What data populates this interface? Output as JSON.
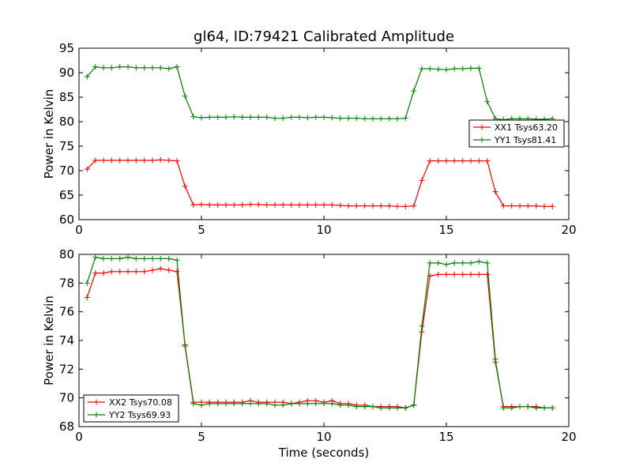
{
  "figure": {
    "title": "gl64, ID:79421 Calibrated Amplitude",
    "xlabel": "Time (seconds)",
    "ylabel": "Power in Kelvin"
  },
  "chart_data": [
    {
      "type": "line",
      "ylabel": "Power in Kelvin",
      "xlim": [
        0,
        20
      ],
      "ylim": [
        60,
        95
      ],
      "xticks": [
        "0",
        "5",
        "10",
        "15",
        "20"
      ],
      "yticks": [
        "60",
        "65",
        "70",
        "75",
        "80",
        "85",
        "90",
        "95"
      ],
      "grid": false,
      "legend_position": "center-right",
      "series": [
        {
          "name": "XX1 Tsys63.20",
          "color": "#ff0000",
          "x": [
            0.33,
            0.67,
            1.0,
            1.33,
            1.67,
            2.0,
            2.33,
            2.67,
            3.0,
            3.33,
            3.67,
            4.0,
            4.33,
            4.67,
            5.0,
            5.33,
            5.67,
            6.0,
            6.33,
            6.67,
            7.0,
            7.33,
            7.67,
            8.0,
            8.33,
            8.67,
            9.0,
            9.33,
            9.67,
            10.0,
            10.33,
            10.67,
            11.0,
            11.33,
            11.67,
            12.0,
            12.33,
            12.67,
            13.0,
            13.33,
            13.67,
            14.0,
            14.33,
            14.67,
            15.0,
            15.33,
            15.67,
            16.0,
            16.33,
            16.67,
            17.0,
            17.33,
            17.67,
            18.0,
            18.33,
            18.67,
            19.0,
            19.33
          ],
          "y": [
            70.3,
            72.1,
            72.1,
            72.1,
            72.1,
            72.1,
            72.1,
            72.1,
            72.1,
            72.2,
            72.1,
            72.0,
            66.8,
            63.0,
            63.1,
            63.0,
            63.0,
            63.0,
            63.0,
            63.0,
            63.1,
            63.1,
            63.0,
            63.0,
            63.0,
            63.0,
            63.0,
            63.0,
            63.0,
            63.0,
            63.0,
            62.9,
            62.8,
            62.8,
            62.8,
            62.8,
            62.8,
            62.8,
            62.7,
            62.7,
            62.8,
            68.0,
            72.0,
            72.0,
            72.0,
            72.0,
            72.0,
            72.0,
            72.0,
            72.0,
            65.7,
            62.8,
            62.8,
            62.8,
            62.8,
            62.8,
            62.7,
            62.7
          ]
        },
        {
          "name": "YY1 Tsys81.41",
          "color": "#008000",
          "x": [
            0.33,
            0.67,
            1.0,
            1.33,
            1.67,
            2.0,
            2.33,
            2.67,
            3.0,
            3.33,
            3.67,
            4.0,
            4.33,
            4.67,
            5.0,
            5.33,
            5.67,
            6.0,
            6.33,
            6.67,
            7.0,
            7.33,
            7.67,
            8.0,
            8.33,
            8.67,
            9.0,
            9.33,
            9.67,
            10.0,
            10.33,
            10.67,
            11.0,
            11.33,
            11.67,
            12.0,
            12.33,
            12.67,
            13.0,
            13.33,
            13.67,
            14.0,
            14.33,
            14.67,
            15.0,
            15.33,
            15.67,
            16.0,
            16.33,
            16.67,
            17.0,
            17.33,
            17.67,
            18.0,
            18.33,
            18.67,
            19.0,
            19.33
          ],
          "y": [
            89.2,
            91.2,
            91.0,
            91.0,
            91.2,
            91.2,
            91.0,
            91.0,
            91.0,
            91.0,
            90.8,
            91.2,
            85.2,
            81.0,
            80.8,
            80.9,
            80.9,
            80.9,
            81.0,
            80.9,
            80.9,
            80.9,
            80.9,
            80.7,
            80.7,
            80.9,
            80.9,
            80.8,
            80.9,
            80.9,
            80.8,
            80.7,
            80.7,
            80.7,
            80.6,
            80.6,
            80.6,
            80.6,
            80.6,
            80.7,
            86.3,
            90.8,
            90.8,
            90.7,
            90.6,
            90.8,
            90.8,
            90.9,
            90.9,
            84.1,
            80.6,
            80.4,
            80.6,
            80.6,
            80.6,
            80.5,
            80.5,
            80.6
          ]
        }
      ]
    },
    {
      "type": "line",
      "xlabel": "Time (seconds)",
      "ylabel": "Power in Kelvin",
      "xlim": [
        0,
        20
      ],
      "ylim": [
        68,
        80
      ],
      "xticks": [
        "0",
        "5",
        "10",
        "15",
        "20"
      ],
      "yticks": [
        "68",
        "70",
        "72",
        "74",
        "76",
        "78",
        "80"
      ],
      "grid": false,
      "legend_position": "bottom-left",
      "series": [
        {
          "name": "XX2 Tsys70.08",
          "color": "#ff0000",
          "x": [
            0.33,
            0.67,
            1.0,
            1.33,
            1.67,
            2.0,
            2.33,
            2.67,
            3.0,
            3.33,
            3.67,
            4.0,
            4.33,
            4.67,
            5.0,
            5.33,
            5.67,
            6.0,
            6.33,
            6.67,
            7.0,
            7.33,
            7.67,
            8.0,
            8.33,
            8.67,
            9.0,
            9.33,
            9.67,
            10.0,
            10.33,
            10.67,
            11.0,
            11.33,
            11.67,
            12.0,
            12.33,
            12.67,
            13.0,
            13.33,
            13.67,
            14.0,
            14.33,
            14.67,
            15.0,
            15.33,
            15.67,
            16.0,
            16.33,
            16.67,
            17.0,
            17.33,
            17.67,
            18.0,
            18.33,
            18.67,
            19.0,
            19.33
          ],
          "y": [
            77.0,
            78.7,
            78.7,
            78.8,
            78.8,
            78.8,
            78.8,
            78.8,
            78.9,
            79.0,
            78.9,
            78.8,
            73.7,
            69.7,
            69.7,
            69.7,
            69.7,
            69.7,
            69.7,
            69.7,
            69.8,
            69.7,
            69.7,
            69.7,
            69.7,
            69.6,
            69.7,
            69.8,
            69.8,
            69.7,
            69.8,
            69.6,
            69.6,
            69.5,
            69.5,
            69.4,
            69.4,
            69.4,
            69.4,
            69.3,
            69.5,
            74.6,
            78.5,
            78.6,
            78.6,
            78.6,
            78.6,
            78.6,
            78.6,
            78.6,
            72.5,
            69.4,
            69.4,
            69.4,
            69.4,
            69.4,
            69.3,
            69.3
          ]
        },
        {
          "name": "YY2 Tsys69.93",
          "color": "#008000",
          "x": [
            0.33,
            0.67,
            1.0,
            1.33,
            1.67,
            2.0,
            2.33,
            2.67,
            3.0,
            3.33,
            3.67,
            4.0,
            4.33,
            4.67,
            5.0,
            5.33,
            5.67,
            6.0,
            6.33,
            6.67,
            7.0,
            7.33,
            7.67,
            8.0,
            8.33,
            8.67,
            9.0,
            9.33,
            9.67,
            10.0,
            10.33,
            10.67,
            11.0,
            11.33,
            11.67,
            12.0,
            12.33,
            12.67,
            13.0,
            13.33,
            13.67,
            14.0,
            14.33,
            14.67,
            15.0,
            15.33,
            15.67,
            16.0,
            16.33,
            16.67,
            17.0,
            17.33,
            17.67,
            18.0,
            18.33,
            18.67,
            19.0,
            19.33
          ],
          "y": [
            78.0,
            79.8,
            79.7,
            79.7,
            79.7,
            79.8,
            79.7,
            79.7,
            79.7,
            79.7,
            79.7,
            79.6,
            73.6,
            69.6,
            69.5,
            69.6,
            69.6,
            69.6,
            69.6,
            69.6,
            69.6,
            69.6,
            69.6,
            69.5,
            69.5,
            69.6,
            69.6,
            69.6,
            69.6,
            69.6,
            69.6,
            69.5,
            69.5,
            69.4,
            69.4,
            69.4,
            69.3,
            69.3,
            69.3,
            69.3,
            69.5,
            75.0,
            79.4,
            79.4,
            79.3,
            79.4,
            79.4,
            79.4,
            79.5,
            79.4,
            72.7,
            69.3,
            69.3,
            69.4,
            69.4,
            69.3,
            69.3,
            69.3
          ]
        }
      ]
    }
  ]
}
